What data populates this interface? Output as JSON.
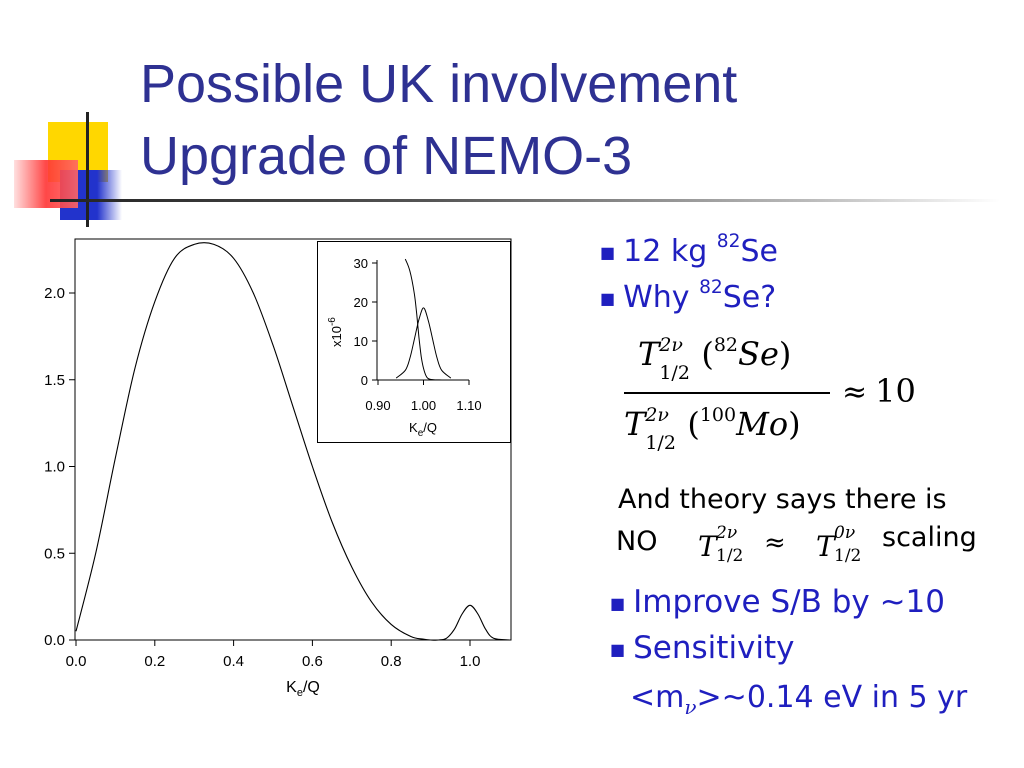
{
  "title": {
    "line1": "Possible UK involvement",
    "line2": "Upgrade of NEMO-3"
  },
  "colors": {
    "title": "#2e3192",
    "bullet_text": "#1f1fbf",
    "deco_yellow": "#ffd700",
    "deco_red": "#ff3333",
    "deco_blue": "#2233cc"
  },
  "bullets_top": [
    {
      "pre": "12 kg ",
      "sup": "82",
      "post": "Se"
    },
    {
      "pre": "Why ",
      "sup": "82",
      "post": "Se?"
    }
  ],
  "formula": {
    "T": "T",
    "sub": "1/2",
    "sup2nu": "2ν",
    "sup0nu": "0ν",
    "num_sup": "82",
    "num_el": "Se",
    "den_sup": "100",
    "den_el": "Mo",
    "open": "(",
    "close": ")",
    "rel": "≈",
    "value": "10"
  },
  "theory": {
    "line1": "And theory says there is",
    "no": "NO",
    "rel": "≈",
    "scaling": "scaling"
  },
  "bullets_bottom": [
    {
      "text": "Improve S/B by ~10"
    },
    {
      "text": "Sensitivity"
    }
  ],
  "sensitivity": {
    "pre": "<m",
    "sub": "ν",
    "post": ">~0.14 eV in 5 yr"
  },
  "chart_data": [
    {
      "type": "line",
      "xlabel": "K",
      "xlabel_sub": "e",
      "xlabel_post": "/Q",
      "ylabel": "",
      "xlim": [
        0.0,
        1.1
      ],
      "ylim": [
        0.0,
        2.3
      ],
      "xticks": [
        "0.0",
        "0.2",
        "0.4",
        "0.6",
        "0.8",
        "1.0"
      ],
      "yticks": [
        "0.0",
        "0.5",
        "1.0",
        "1.5",
        "2.0"
      ],
      "series": [
        {
          "x": [
            0.0,
            0.05,
            0.1,
            0.15,
            0.2,
            0.25,
            0.3,
            0.35,
            0.4,
            0.45,
            0.5,
            0.55,
            0.6,
            0.65,
            0.7,
            0.75,
            0.8,
            0.85,
            0.88,
            0.9,
            0.92,
            0.94,
            0.96,
            0.98,
            1.0,
            1.02,
            1.04,
            1.06,
            1.1
          ],
          "y": [
            0.05,
            0.5,
            1.05,
            1.57,
            1.95,
            2.2,
            2.28,
            2.28,
            2.2,
            2.0,
            1.7,
            1.35,
            1.0,
            0.68,
            0.42,
            0.22,
            0.09,
            0.02,
            0.005,
            0.0,
            0.0,
            0.01,
            0.06,
            0.15,
            0.2,
            0.15,
            0.06,
            0.01,
            0.0
          ]
        }
      ]
    },
    {
      "type": "line",
      "xlabel": "K",
      "xlabel_sub": "e",
      "xlabel_post": "/Q",
      "ylabel": "x10",
      "ylabel_exp": "-6",
      "xlim": [
        0.9,
        1.12
      ],
      "ylim": [
        0,
        31
      ],
      "xticks": [
        "0.90",
        "1.00",
        "1.10"
      ],
      "yticks": [
        "0",
        "10",
        "20",
        "30"
      ],
      "series": [
        {
          "x": [
            0.96,
            0.97,
            0.98,
            0.985,
            0.99,
            0.995,
            1.0,
            1.005,
            1.01,
            1.02,
            1.04,
            1.06
          ],
          "y": [
            31,
            28,
            22,
            17,
            11,
            6,
            3,
            1.2,
            0.4,
            0.1,
            0,
            0
          ]
        },
        {
          "x": [
            0.94,
            0.96,
            0.97,
            0.98,
            0.99,
            1.0,
            1.01,
            1.02,
            1.03,
            1.04,
            1.06
          ],
          "y": [
            0.5,
            2.5,
            5.5,
            10.5,
            15.5,
            18.5,
            15.5,
            10.5,
            5.5,
            2.5,
            0.5
          ]
        }
      ]
    }
  ]
}
